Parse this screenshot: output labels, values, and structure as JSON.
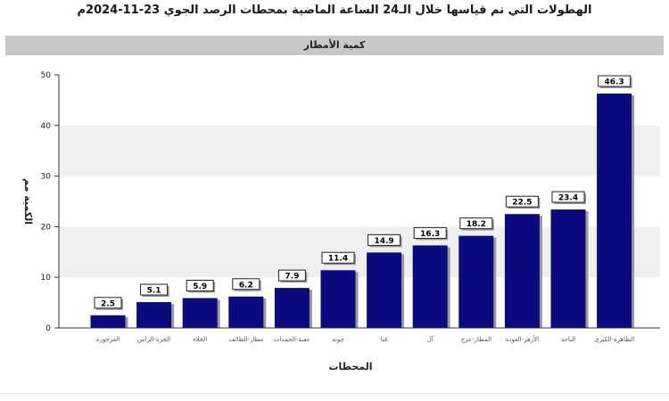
{
  "page": {
    "title": "الهطولات التي تم قياسها خلال الـ24 الساعة الماضية بمحطات الرصد الجوي 23-11-2024م",
    "subtitle": "كمية الأمطار"
  },
  "colors": {
    "bar": "#0b0b80",
    "bar_shadow": "#9a9a9a",
    "band": "#efefef",
    "axis": "#333333"
  },
  "chart_data": {
    "type": "bar",
    "title": "كمية الأمطار",
    "xlabel": "المحطات",
    "ylabel": "الكمية مم",
    "ylim": [
      0,
      50
    ],
    "yticks": [
      0,
      10,
      20,
      30,
      40,
      50
    ],
    "grid": false,
    "categories": [
      "العرجوزه",
      "الحرة-الراس",
      "الخلاء",
      "مطار-الطائف",
      "عقبة-الحمدات",
      "جونه",
      "قنا",
      "آل",
      "المطار-عرج",
      "الأزهر-العودة",
      "الباحة",
      "الطاهرة-الكبرى"
    ],
    "values": [
      2.5,
      5.1,
      5.9,
      6.2,
      7.9,
      11.4,
      14.9,
      16.3,
      18.2,
      22.5,
      23.4,
      46.3
    ]
  }
}
